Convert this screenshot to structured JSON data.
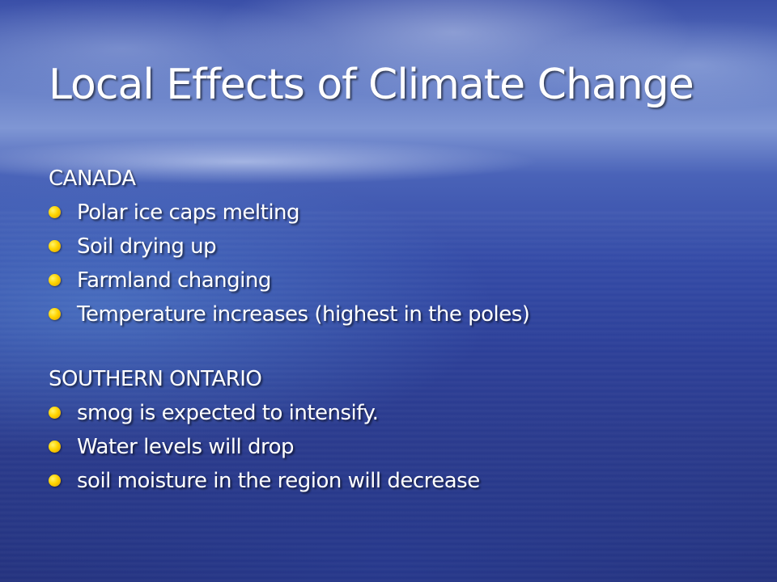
{
  "slide": {
    "title": "Local Effects of Climate Change",
    "sections": [
      {
        "heading": "CANADA",
        "items": [
          "Polar ice caps melting",
          "Soil drying up",
          "Farmland changing",
          "Temperature increases (highest in the poles)"
        ]
      },
      {
        "heading": "SOUTHERN ONTARIO",
        "items": [
          "smog is expected to intensify.",
          "Water levels will drop",
          "soil moisture in the region will decrease"
        ]
      }
    ]
  },
  "colors": {
    "text": "#ffffff",
    "bullet": "#ffd400",
    "background_top": "#3a4fa8",
    "background_bottom": "#23307a"
  },
  "icons": {
    "bullet": "yellow-dot-bullet-icon"
  }
}
